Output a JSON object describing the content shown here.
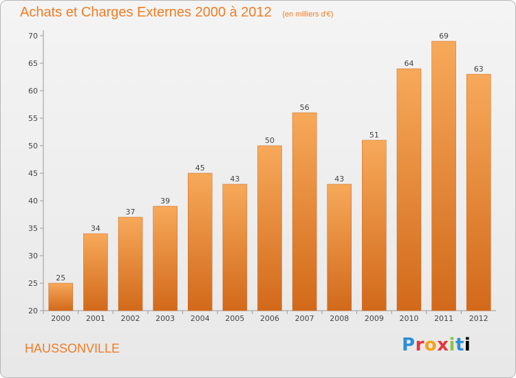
{
  "chart_data": {
    "type": "bar",
    "title": "Achats et Charges Externes 2000 à 2012",
    "unit": "(en milliers d'€)",
    "categories": [
      "2000",
      "2001",
      "2002",
      "2003",
      "2004",
      "2005",
      "2006",
      "2007",
      "2008",
      "2009",
      "2010",
      "2011",
      "2012"
    ],
    "values": [
      25,
      34,
      37,
      39,
      45,
      43,
      50,
      56,
      43,
      51,
      64,
      69,
      63
    ],
    "ylim": [
      20,
      70
    ],
    "yticks": [
      20,
      25,
      30,
      35,
      40,
      45,
      50,
      55,
      60,
      65,
      70
    ],
    "grid": false,
    "bar_color_top": "#f7a95a",
    "bar_color_bottom": "#d2691a"
  },
  "commune": "HAUSSONVILLE",
  "logo": {
    "text": "Proxiti",
    "letters": [
      "P",
      "r",
      "o",
      "x",
      "i",
      "t",
      "i"
    ]
  }
}
